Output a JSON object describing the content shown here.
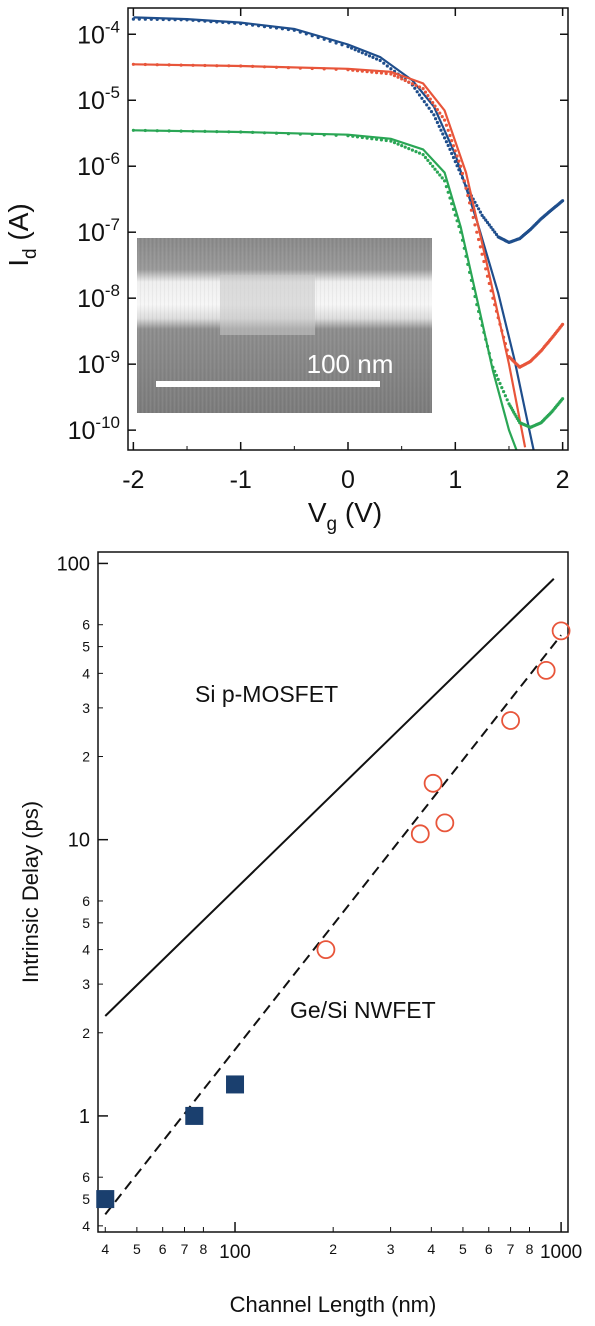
{
  "chart_data": [
    {
      "type": "line",
      "y_scale": "log",
      "xlabel": "V",
      "xlabel_sub": "g",
      "xlabel_unit": " (V)",
      "ylabel": "I",
      "ylabel_sub": "d",
      "ylabel_unit": " (A)",
      "xlim": [
        -2.05,
        2.05
      ],
      "ylim": [
        5e-11,
        0.00025
      ],
      "x_ticks": [
        -2,
        -1,
        0,
        1,
        2
      ],
      "x_tick_labels": [
        "-2",
        "-1",
        "0",
        "1",
        "2"
      ],
      "y_ticks": [
        0.0001,
        1e-05,
        1e-06,
        1e-07,
        1e-08,
        1e-09,
        1e-10
      ],
      "y_tick_labels": [
        {
          "base": "10",
          "exp": "-4"
        },
        {
          "base": "10",
          "exp": "-5"
        },
        {
          "base": "10",
          "exp": "-6"
        },
        {
          "base": "10",
          "exp": "-7"
        },
        {
          "base": "10",
          "exp": "-8"
        },
        {
          "base": "10",
          "exp": "-9"
        },
        {
          "base": "10",
          "exp": "-10"
        }
      ],
      "inset": {
        "scale_bar_label": "100 nm"
      },
      "series": [
        {
          "color": "#1f4e8c",
          "fit_line": {
            "x": [
              -2.0,
              -1.5,
              -1.0,
              -0.5,
              0.0,
              0.3,
              0.6,
              0.8,
              1.0,
              1.2,
              1.4,
              1.55,
              1.65,
              1.75
            ],
            "y": [
              0.00018,
              0.00017,
              0.00015,
              0.00012,
              7e-05,
              4.5e-05,
              2e-05,
              8e-06,
              1.5e-06,
              1.5e-07,
              1.2e-08,
              1.2e-09,
              2e-10,
              3.5e-11
            ]
          },
          "measured": {
            "x": [
              -2.0,
              -1.5,
              -1.0,
              -0.5,
              0.0,
              0.3,
              0.6,
              0.8,
              0.95,
              1.1,
              1.25,
              1.4,
              1.5,
              1.6,
              1.7,
              1.8,
              1.9,
              2.0
            ],
            "y": [
              0.00017,
              0.000165,
              0.000145,
              0.000115,
              6.5e-05,
              4e-05,
              1.7e-05,
              6e-06,
              1.8e-06,
              5e-07,
              1.8e-07,
              8.5e-08,
              7e-08,
              8e-08,
              1.1e-07,
              1.6e-07,
              2.2e-07,
              3e-07
            ]
          }
        },
        {
          "color": "#e8553a",
          "fit_line": {
            "x": [
              -2.0,
              -1.0,
              0.0,
              0.4,
              0.7,
              0.9,
              1.1,
              1.3,
              1.5,
              1.65
            ],
            "y": [
              3.5e-05,
              3.3e-05,
              3e-05,
              2.7e-05,
              1.8e-05,
              7e-06,
              8e-07,
              3e-08,
              1e-09,
              5.5e-11
            ]
          },
          "measured": {
            "x": [
              -2.0,
              -1.0,
              0.0,
              0.4,
              0.7,
              0.9,
              1.05,
              1.2,
              1.35,
              1.5,
              1.6,
              1.7,
              1.8,
              1.9,
              2.0
            ],
            "y": [
              3.5e-05,
              3.3e-05,
              2.9e-05,
              2.5e-05,
              1.5e-05,
              5e-06,
              1e-06,
              1e-07,
              1e-08,
              1.3e-09,
              9e-10,
              1.1e-09,
              1.6e-09,
              2.5e-09,
              4e-09
            ]
          }
        },
        {
          "color": "#2aa655",
          "fit_line": {
            "x": [
              -2.0,
              -1.0,
              0.0,
              0.4,
              0.7,
              0.9,
              1.05,
              1.2,
              1.35,
              1.5,
              1.58
            ],
            "y": [
              3.5e-06,
              3.3e-06,
              3e-06,
              2.6e-06,
              1.8e-06,
              8e-07,
              1.2e-07,
              1e-08,
              8e-10,
              1e-10,
              4.5e-11
            ]
          },
          "measured": {
            "x": [
              -2.0,
              -1.0,
              0.0,
              0.4,
              0.7,
              0.9,
              1.05,
              1.2,
              1.35,
              1.5,
              1.6,
              1.7,
              1.8,
              1.9,
              2.0
            ],
            "y": [
              3.5e-06,
              3.3e-06,
              2.9e-06,
              2.4e-06,
              1.5e-06,
              6e-07,
              1e-07,
              8e-09,
              9e-10,
              2.5e-10,
              1.3e-10,
              1.1e-10,
              1.3e-10,
              1.9e-10,
              3e-10
            ]
          }
        }
      ]
    },
    {
      "type": "scatter",
      "x_scale": "log",
      "y_scale": "log",
      "xlabel": "Channel Length (nm)",
      "ylabel": "Intrinsic Delay (ps)",
      "xlim": [
        38,
        1050
      ],
      "ylim": [
        0.38,
        110
      ],
      "x_major_ticks": [
        100,
        1000
      ],
      "x_major_labels": [
        "100",
        "1000"
      ],
      "x_minor_ticks": [
        40,
        50,
        60,
        70,
        80,
        200,
        300,
        400,
        500,
        600,
        700,
        800
      ],
      "x_minor_labels": [
        "4",
        "5",
        "6",
        "7",
        "8",
        "2",
        "3",
        "4",
        "5",
        "6",
        "7",
        "8"
      ],
      "y_major_ticks": [
        1,
        10,
        100
      ],
      "y_major_labels": [
        "1",
        "10",
        "100"
      ],
      "y_minor_ticks": [
        0.4,
        0.5,
        0.6,
        2,
        3,
        4,
        5,
        6,
        20,
        30,
        40,
        50,
        60
      ],
      "y_minor_labels": [
        "4",
        "5",
        "6",
        "2",
        "3",
        "4",
        "5",
        "6",
        "2",
        "3",
        "4",
        "5",
        "6"
      ],
      "annotations": [
        "Si p-MOSFET",
        "Ge/Si NWFET"
      ],
      "series": [
        {
          "marker": "square-filled",
          "color": "#1a3f6e",
          "x": [
            40,
            75,
            100
          ],
          "y": [
            0.5,
            1.0,
            1.3
          ]
        },
        {
          "marker": "circle-open",
          "color": "#e8553a",
          "x": [
            190,
            370,
            405,
            440,
            700,
            900,
            1000
          ],
          "y": [
            4,
            10.5,
            16,
            11.5,
            27,
            41,
            57
          ]
        }
      ],
      "lines": [
        {
          "style": "solid",
          "x": [
            40,
            950
          ],
          "y": [
            2.3,
            88
          ]
        },
        {
          "style": "dashed",
          "x": [
            40,
            1000
          ],
          "y": [
            0.44,
            55
          ]
        }
      ]
    }
  ]
}
